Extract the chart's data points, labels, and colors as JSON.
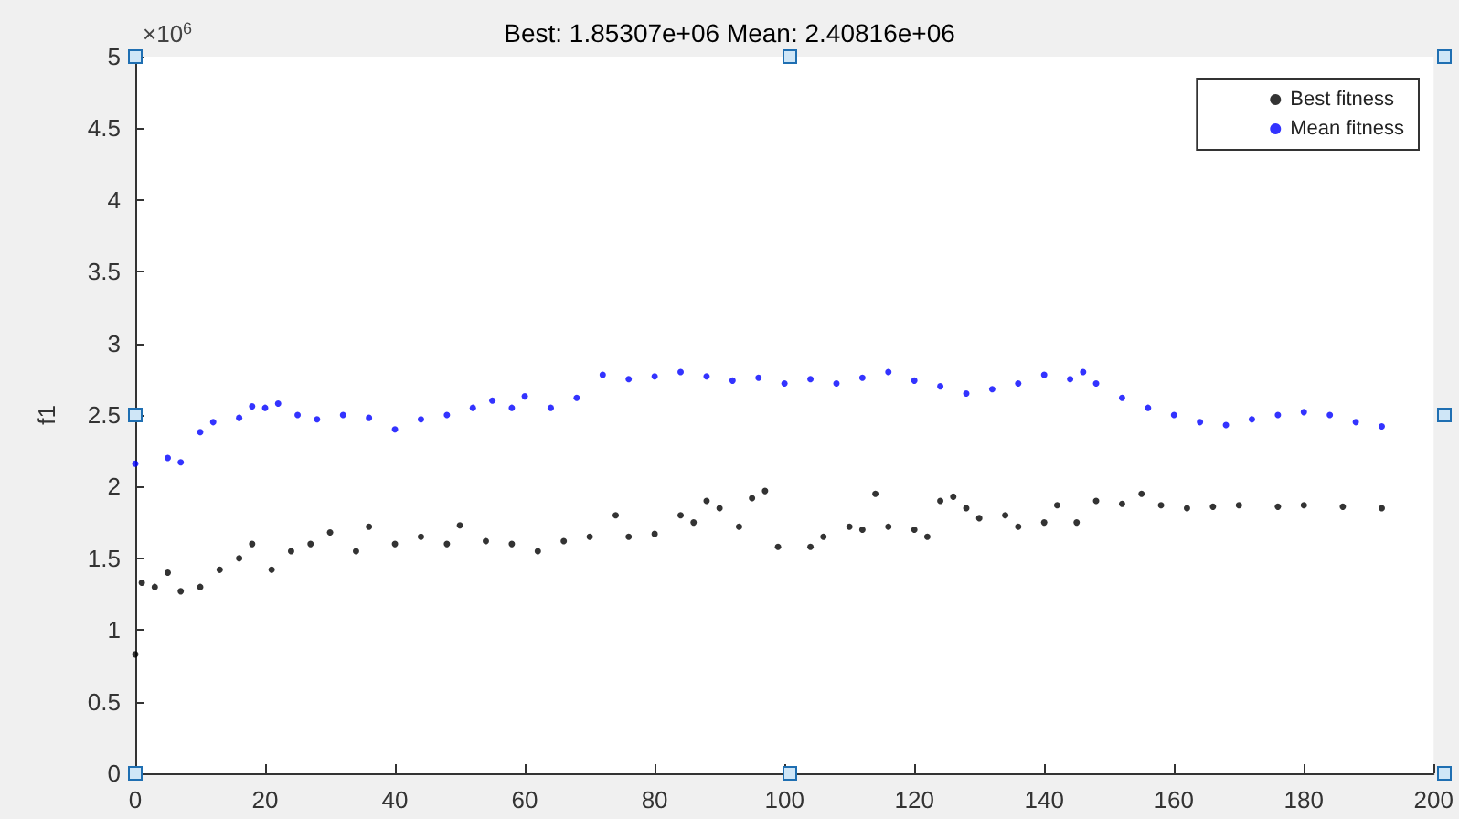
{
  "chart_data": {
    "type": "scatter",
    "title": "Best: 1.85307e+06 Mean: 2.40816e+06",
    "ylabel": "f1",
    "annotations": [
      "×10$^{6}$"
    ],
    "xlim": [
      0,
      200
    ],
    "xticks": [
      0,
      20,
      40,
      60,
      80,
      100,
      120,
      140,
      160,
      180,
      200
    ],
    "ylim": [
      0,
      5
    ],
    "yticks": [
      0,
      0.5,
      1,
      1.5,
      2,
      2.5,
      3,
      3.5,
      4,
      4.5,
      5
    ],
    "grid": false,
    "legend": "top right",
    "marker": "circle",
    "series": [
      {
        "name": "Best fitness",
        "color": "#000000",
        "x": [
          0,
          1,
          3,
          5,
          7,
          10,
          13,
          16,
          18,
          21,
          24,
          27,
          30,
          34,
          36,
          40,
          44,
          48,
          50,
          54,
          58,
          62,
          66,
          70,
          74,
          76,
          80,
          84,
          86,
          88,
          90,
          93,
          95,
          97,
          99,
          104,
          106,
          110,
          112,
          114,
          116,
          120,
          122,
          124,
          126,
          128,
          130,
          134,
          136,
          140,
          142,
          145,
          148,
          152,
          155,
          158,
          162,
          166,
          170,
          176,
          180,
          186,
          192
        ],
        "values": [
          0.83,
          1.33,
          1.3,
          1.4,
          1.27,
          1.3,
          1.42,
          1.5,
          1.6,
          1.42,
          1.55,
          1.6,
          1.68,
          1.55,
          1.72,
          1.6,
          1.65,
          1.6,
          1.73,
          1.62,
          1.6,
          1.55,
          1.62,
          1.65,
          1.8,
          1.65,
          1.67,
          1.8,
          1.75,
          1.9,
          1.85,
          1.72,
          1.92,
          1.97,
          1.58,
          1.58,
          1.65,
          1.72,
          1.7,
          1.95,
          1.72,
          1.7,
          1.65,
          1.9,
          1.93,
          1.85,
          1.78,
          1.8,
          1.72,
          1.75,
          1.87,
          1.75,
          1.9,
          1.88,
          1.95,
          1.87,
          1.85,
          1.86,
          1.87,
          1.86,
          1.87,
          1.86,
          1.85
        ]
      },
      {
        "name": "Mean fitness",
        "color": "#0000ff",
        "x": [
          0,
          5,
          7,
          10,
          12,
          16,
          18,
          20,
          22,
          25,
          28,
          32,
          36,
          40,
          44,
          48,
          52,
          55,
          58,
          60,
          64,
          68,
          72,
          76,
          80,
          84,
          88,
          92,
          96,
          100,
          104,
          108,
          112,
          116,
          120,
          124,
          128,
          132,
          136,
          140,
          144,
          146,
          148,
          152,
          156,
          160,
          164,
          168,
          172,
          176,
          180,
          184,
          188,
          192
        ],
        "values": [
          2.16,
          2.2,
          2.17,
          2.38,
          2.45,
          2.48,
          2.56,
          2.55,
          2.58,
          2.5,
          2.47,
          2.5,
          2.48,
          2.4,
          2.47,
          2.5,
          2.55,
          2.6,
          2.55,
          2.63,
          2.55,
          2.62,
          2.78,
          2.75,
          2.77,
          2.8,
          2.77,
          2.74,
          2.76,
          2.72,
          2.75,
          2.72,
          2.76,
          2.8,
          2.74,
          2.7,
          2.65,
          2.68,
          2.72,
          2.78,
          2.75,
          2.8,
          2.72,
          2.62,
          2.55,
          2.5,
          2.45,
          2.43,
          2.47,
          2.5,
          2.52,
          2.5,
          2.45,
          2.42
        ]
      }
    ]
  }
}
